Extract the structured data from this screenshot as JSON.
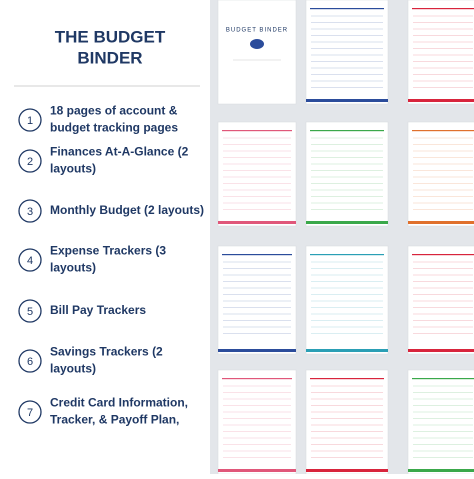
{
  "header": {
    "title_lines": [
      "THE BUDGET",
      "BINDER"
    ]
  },
  "features": [
    {
      "number": "1",
      "lines": [
        "18 pages of account &",
        "budget tracking pages"
      ]
    },
    {
      "number": "2",
      "lines": [
        "Finances At-A-Glance (2",
        "layouts)"
      ]
    },
    {
      "number": "3",
      "lines": [
        "Monthly Budget (2 layouts)"
      ]
    },
    {
      "number": "4",
      "lines": [
        "Expense Trackers (3",
        "layouts)"
      ]
    },
    {
      "number": "5",
      "lines": [
        "Bill Pay Trackers"
      ]
    },
    {
      "number": "6",
      "lines": [
        "Savings Trackers (2",
        "layouts)"
      ]
    },
    {
      "number": "7",
      "lines": [
        "Credit Card Information,",
        "Tracker, & Payoff Plan,"
      ]
    }
  ],
  "cover": {
    "text": "BUDGET BINDER"
  }
}
